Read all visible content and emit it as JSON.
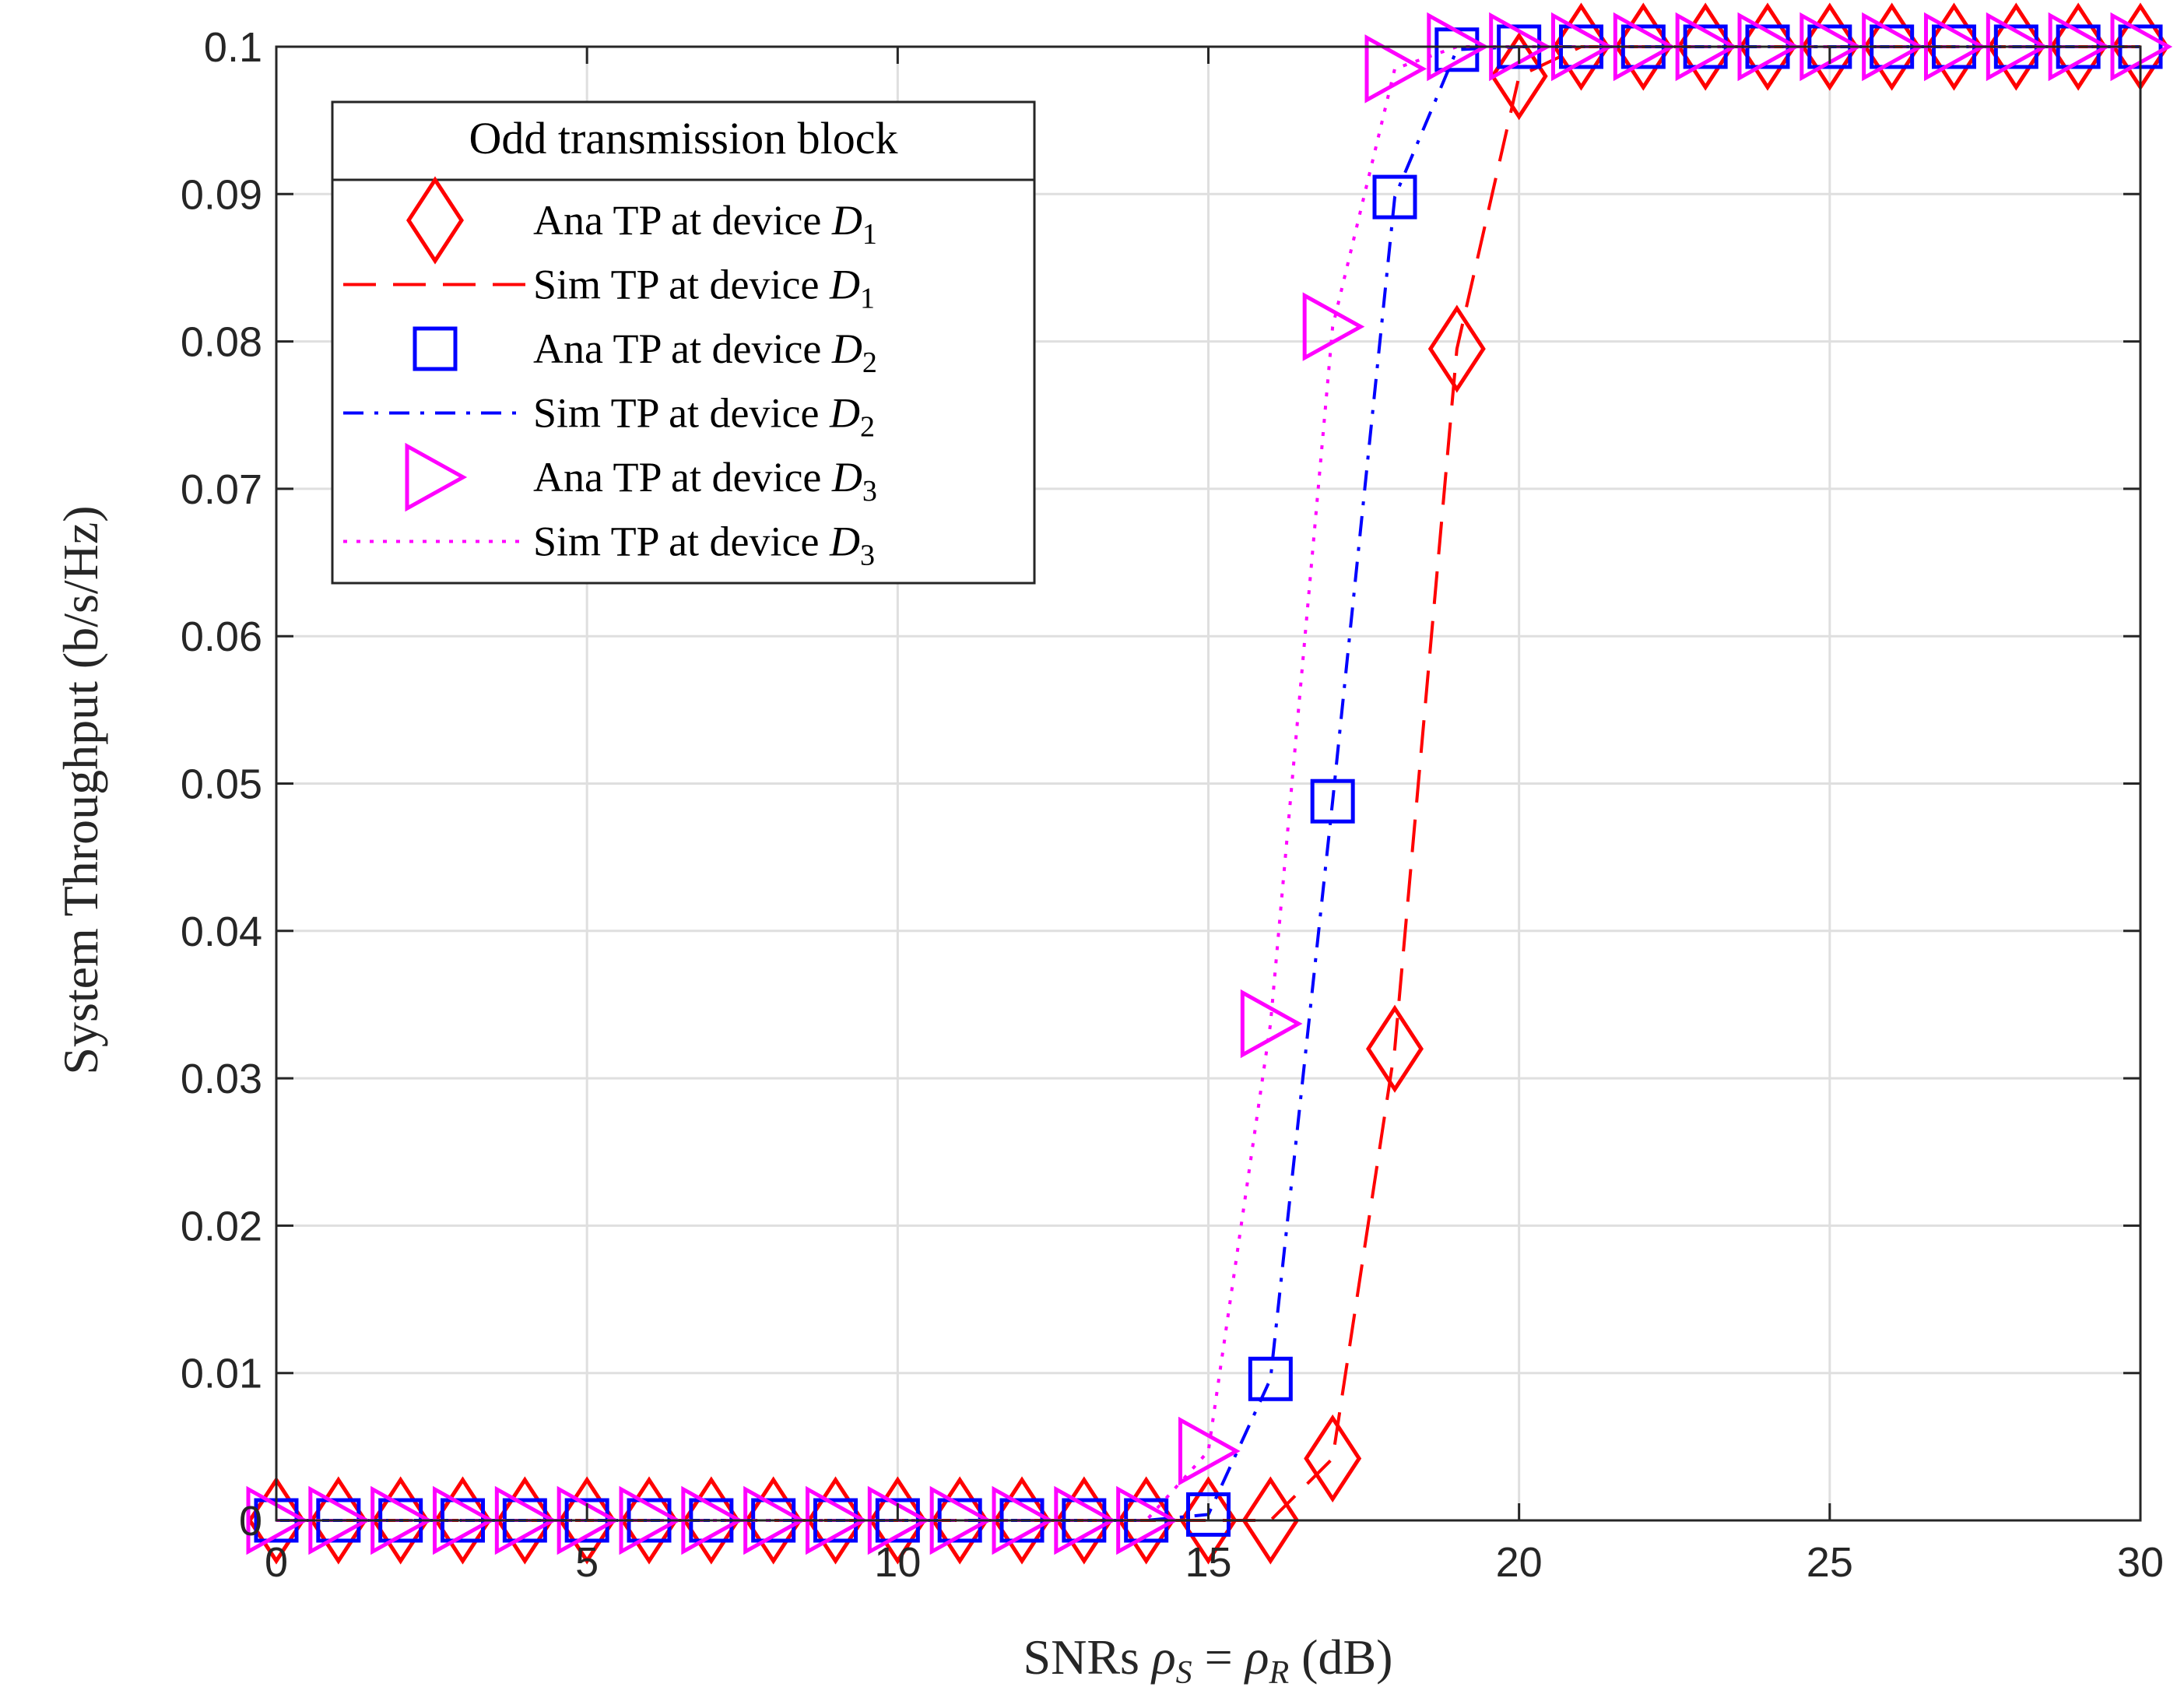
{
  "chart_data": {
    "type": "line",
    "xlabel": "SNRs ρ_S = ρ_R (dB)",
    "xlabel_parts": {
      "prefix": "SNRs ",
      "rho1": "ρ",
      "sub1": "S",
      "eq": " = ",
      "rho2": "ρ",
      "sub2": "R",
      "suffix": " (dB)"
    },
    "ylabel": "System Throughput (b/s/Hz)",
    "xlim": [
      0,
      30
    ],
    "ylim": [
      0,
      0.1
    ],
    "xticks": [
      0,
      5,
      10,
      15,
      20,
      25,
      30
    ],
    "yticks": [
      0,
      0.01,
      0.02,
      0.03,
      0.04,
      0.05,
      0.06,
      0.07,
      0.08,
      0.09,
      0.1
    ],
    "xtick_labels": [
      "0",
      "5",
      "10",
      "15",
      "20",
      "25",
      "30"
    ],
    "ytick_labels": [
      "0",
      "0.01",
      "0.02",
      "0.03",
      "0.04",
      "0.05",
      "0.06",
      "0.07",
      "0.08",
      "0.09",
      "0.1"
    ],
    "grid": true,
    "legend_title": "Odd transmission block",
    "legend_position": "top-left",
    "x": [
      0,
      1,
      2,
      3,
      4,
      5,
      6,
      7,
      8,
      9,
      10,
      11,
      12,
      13,
      14,
      15,
      16,
      17,
      18,
      19,
      20,
      21,
      22,
      23,
      24,
      25,
      26,
      27,
      28,
      29,
      30
    ],
    "series": [
      {
        "name": "Ana TP at device D1",
        "label_text": "Ana TP at device ",
        "label_var": "D",
        "label_sub": "1",
        "style": "marker",
        "marker": "diamond",
        "color": "#ff0000",
        "values": [
          0,
          0,
          0,
          0,
          0,
          0,
          0,
          0,
          0,
          0,
          0,
          0,
          0,
          0,
          0,
          0,
          0,
          0.0042,
          0.032,
          0.0795,
          0.098,
          0.1,
          0.1,
          0.1,
          0.1,
          0.1,
          0.1,
          0.1,
          0.1,
          0.1,
          0.1
        ]
      },
      {
        "name": "Sim TP at device D1",
        "label_text": "Sim TP at device ",
        "label_var": "D",
        "label_sub": "1",
        "style": "dashed",
        "color": "#ff0000",
        "values": [
          0,
          0,
          0,
          0,
          0,
          0,
          0,
          0,
          0,
          0,
          0,
          0,
          0,
          0,
          0,
          0,
          0,
          0.0042,
          0.032,
          0.0795,
          0.098,
          0.1,
          0.1,
          0.1,
          0.1,
          0.1,
          0.1,
          0.1,
          0.1,
          0.1,
          0.1
        ]
      },
      {
        "name": "Ana TP at device D2",
        "label_text": "Ana TP at device ",
        "label_var": "D",
        "label_sub": "2",
        "style": "marker",
        "marker": "square",
        "color": "#0000ff",
        "values": [
          0,
          0,
          0,
          0,
          0,
          0,
          0,
          0,
          0,
          0,
          0,
          0,
          0,
          0,
          0,
          0.0004,
          0.0096,
          0.0488,
          0.0898,
          0.0998,
          0.1,
          0.1,
          0.1,
          0.1,
          0.1,
          0.1,
          0.1,
          0.1,
          0.1,
          0.1,
          0.1
        ]
      },
      {
        "name": "Sim TP at device D2",
        "label_text": "Sim TP at device ",
        "label_var": "D",
        "label_sub": "2",
        "style": "dashdot",
        "color": "#0000ff",
        "values": [
          0,
          0,
          0,
          0,
          0,
          0,
          0,
          0,
          0,
          0,
          0,
          0,
          0,
          0,
          0,
          0.0004,
          0.0096,
          0.0488,
          0.0898,
          0.0998,
          0.1,
          0.1,
          0.1,
          0.1,
          0.1,
          0.1,
          0.1,
          0.1,
          0.1,
          0.1,
          0.1
        ]
      },
      {
        "name": "Ana TP at device D3",
        "label_text": "Ana TP at device ",
        "label_var": "D",
        "label_sub": "3",
        "style": "marker",
        "marker": "triangle-right",
        "color": "#ff00ff",
        "values": [
          0,
          0,
          0,
          0,
          0,
          0,
          0,
          0,
          0,
          0,
          0,
          0,
          0,
          0,
          0,
          0.0047,
          0.0337,
          0.081,
          0.0985,
          0.1,
          0.1,
          0.1,
          0.1,
          0.1,
          0.1,
          0.1,
          0.1,
          0.1,
          0.1,
          0.1,
          0.1
        ]
      },
      {
        "name": "Sim TP at device D3",
        "label_text": "Sim TP at device ",
        "label_var": "D",
        "label_sub": "3",
        "style": "dotted",
        "color": "#ff00ff",
        "values": [
          0,
          0,
          0,
          0,
          0,
          0,
          0,
          0,
          0,
          0,
          0,
          0,
          0,
          0,
          0,
          0.0047,
          0.0337,
          0.081,
          0.0985,
          0.1,
          0.1,
          0.1,
          0.1,
          0.1,
          0.1,
          0.1,
          0.1,
          0.1,
          0.1,
          0.1,
          0.1
        ]
      }
    ]
  }
}
